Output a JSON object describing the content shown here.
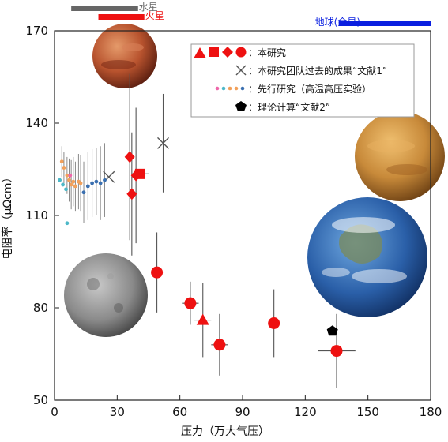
{
  "chart_data": {
    "type": "scatter",
    "title": "",
    "xlabel": "压力（万大气压）",
    "ylabel": "电阻率（μΩcm）",
    "xlim": [
      0,
      180
    ],
    "ylim": [
      50,
      170
    ],
    "x_ticks": [
      "0",
      "30",
      "60",
      "90",
      "120",
      "150",
      "180"
    ],
    "y_ticks": [
      "50",
      "80",
      "110",
      "140",
      "170"
    ],
    "grid": false,
    "legend_position": "top-right",
    "legend": [
      {
        "marker": "triangle-square-diamond-circle",
        "label": "：本研究"
      },
      {
        "marker": "x",
        "label": "：本研究团队过去的成果“文献1”"
      },
      {
        "marker": "dots",
        "label": "：先行研究（高温高压实验）"
      },
      {
        "marker": "pentagon",
        "label": "：理论计算“文献2”"
      }
    ],
    "series": [
      {
        "marker": "circle",
        "color": "#ee1111",
        "points": [
          {
            "x": 49,
            "y": 91.5,
            "yerr": 13,
            "xerr": 0
          },
          {
            "x": 65,
            "y": 81.5,
            "yerr": 7,
            "xerr": 4
          },
          {
            "x": 79,
            "y": 68,
            "yerr": 10,
            "xerr": 4
          },
          {
            "x": 105,
            "y": 75,
            "yerr": 11,
            "xerr": 0
          },
          {
            "x": 135,
            "y": 66,
            "yerr": 12,
            "xerr": 9
          }
        ]
      },
      {
        "marker": "triangle",
        "color": "#ee1111",
        "points": [
          {
            "x": 71,
            "y": 76,
            "yerr": 12,
            "xerr": 4
          }
        ]
      },
      {
        "marker": "square",
        "color": "#ee1111",
        "points": [
          {
            "x": 41,
            "y": 123.5,
            "yerr": 0,
            "xerr": 4
          }
        ]
      },
      {
        "marker": "diamond",
        "color": "#ee1111",
        "points": [
          {
            "x": 36,
            "y": 129,
            "yerr": 27,
            "xerr": 0
          },
          {
            "x": 39,
            "y": 123,
            "yerr": 22,
            "xerr": 0
          },
          {
            "x": 37,
            "y": 117,
            "yerr": 20,
            "xerr": 0
          }
        ]
      },
      {
        "marker": "x",
        "color": "#555555",
        "points": [
          {
            "x": 26,
            "y": 122.5,
            "yerr": 0,
            "xerr": 0
          },
          {
            "x": 52,
            "y": 133.5,
            "yerr": 16,
            "xerr": 0
          }
        ]
      },
      {
        "marker": "pentagon",
        "color": "#000000",
        "points": [
          {
            "x": 133,
            "y": 72.5,
            "yerr": 0,
            "xerr": 0
          }
        ]
      },
      {
        "marker": "dot",
        "color": "#f2a05a",
        "points": [
          {
            "x": 3.5,
            "y": 127.5,
            "yerr": 5
          },
          {
            "x": 4.5,
            "y": 125.5,
            "yerr": 5
          },
          {
            "x": 6,
            "y": 123,
            "yerr": 6
          },
          {
            "x": 7,
            "y": 121.5,
            "yerr": 7
          },
          {
            "x": 8,
            "y": 120,
            "yerr": 8
          },
          {
            "x": 9,
            "y": 121,
            "yerr": 8
          },
          {
            "x": 10,
            "y": 119.5,
            "yerr": 8
          },
          {
            "x": 11.5,
            "y": 121,
            "yerr": 9
          },
          {
            "x": 12.5,
            "y": 120.5,
            "yerr": 9
          }
        ]
      },
      {
        "marker": "dot",
        "color": "#4db8c8",
        "points": [
          {
            "x": 2.5,
            "y": 121.5,
            "yerr": 0
          },
          {
            "x": 4,
            "y": 120,
            "yerr": 0
          },
          {
            "x": 5.5,
            "y": 118.5,
            "yerr": 0
          },
          {
            "x": 6,
            "y": 107.5,
            "yerr": 0
          }
        ]
      },
      {
        "marker": "dot",
        "color": "#ee66aa",
        "points": [
          {
            "x": 7.5,
            "y": 123,
            "yerr": 0
          }
        ]
      },
      {
        "marker": "dot",
        "color": "#3a6fb0",
        "points": [
          {
            "x": 14,
            "y": 117.5,
            "yerr": 10
          },
          {
            "x": 16,
            "y": 119.5,
            "yerr": 11
          },
          {
            "x": 18,
            "y": 120.5,
            "yerr": 11
          },
          {
            "x": 20,
            "y": 121,
            "yerr": 11
          },
          {
            "x": 22,
            "y": 120.5,
            "yerr": 12
          },
          {
            "x": 24,
            "y": 121.5,
            "yerr": 12
          }
        ]
      }
    ],
    "pressure_ranges": [
      {
        "label": "水星",
        "from": 8,
        "to": 40,
        "color": "#666666"
      },
      {
        "label": "火星",
        "from": 21,
        "to": 43,
        "color": "#ee1111"
      },
      {
        "label": "地球(金星)",
        "from": 136,
        "to": 180,
        "color": "#0a1fe0"
      }
    ],
    "planets": [
      {
        "icon": "mars-icon"
      },
      {
        "icon": "venus-icon"
      },
      {
        "icon": "earth-icon"
      },
      {
        "icon": "mercury-icon"
      }
    ]
  }
}
